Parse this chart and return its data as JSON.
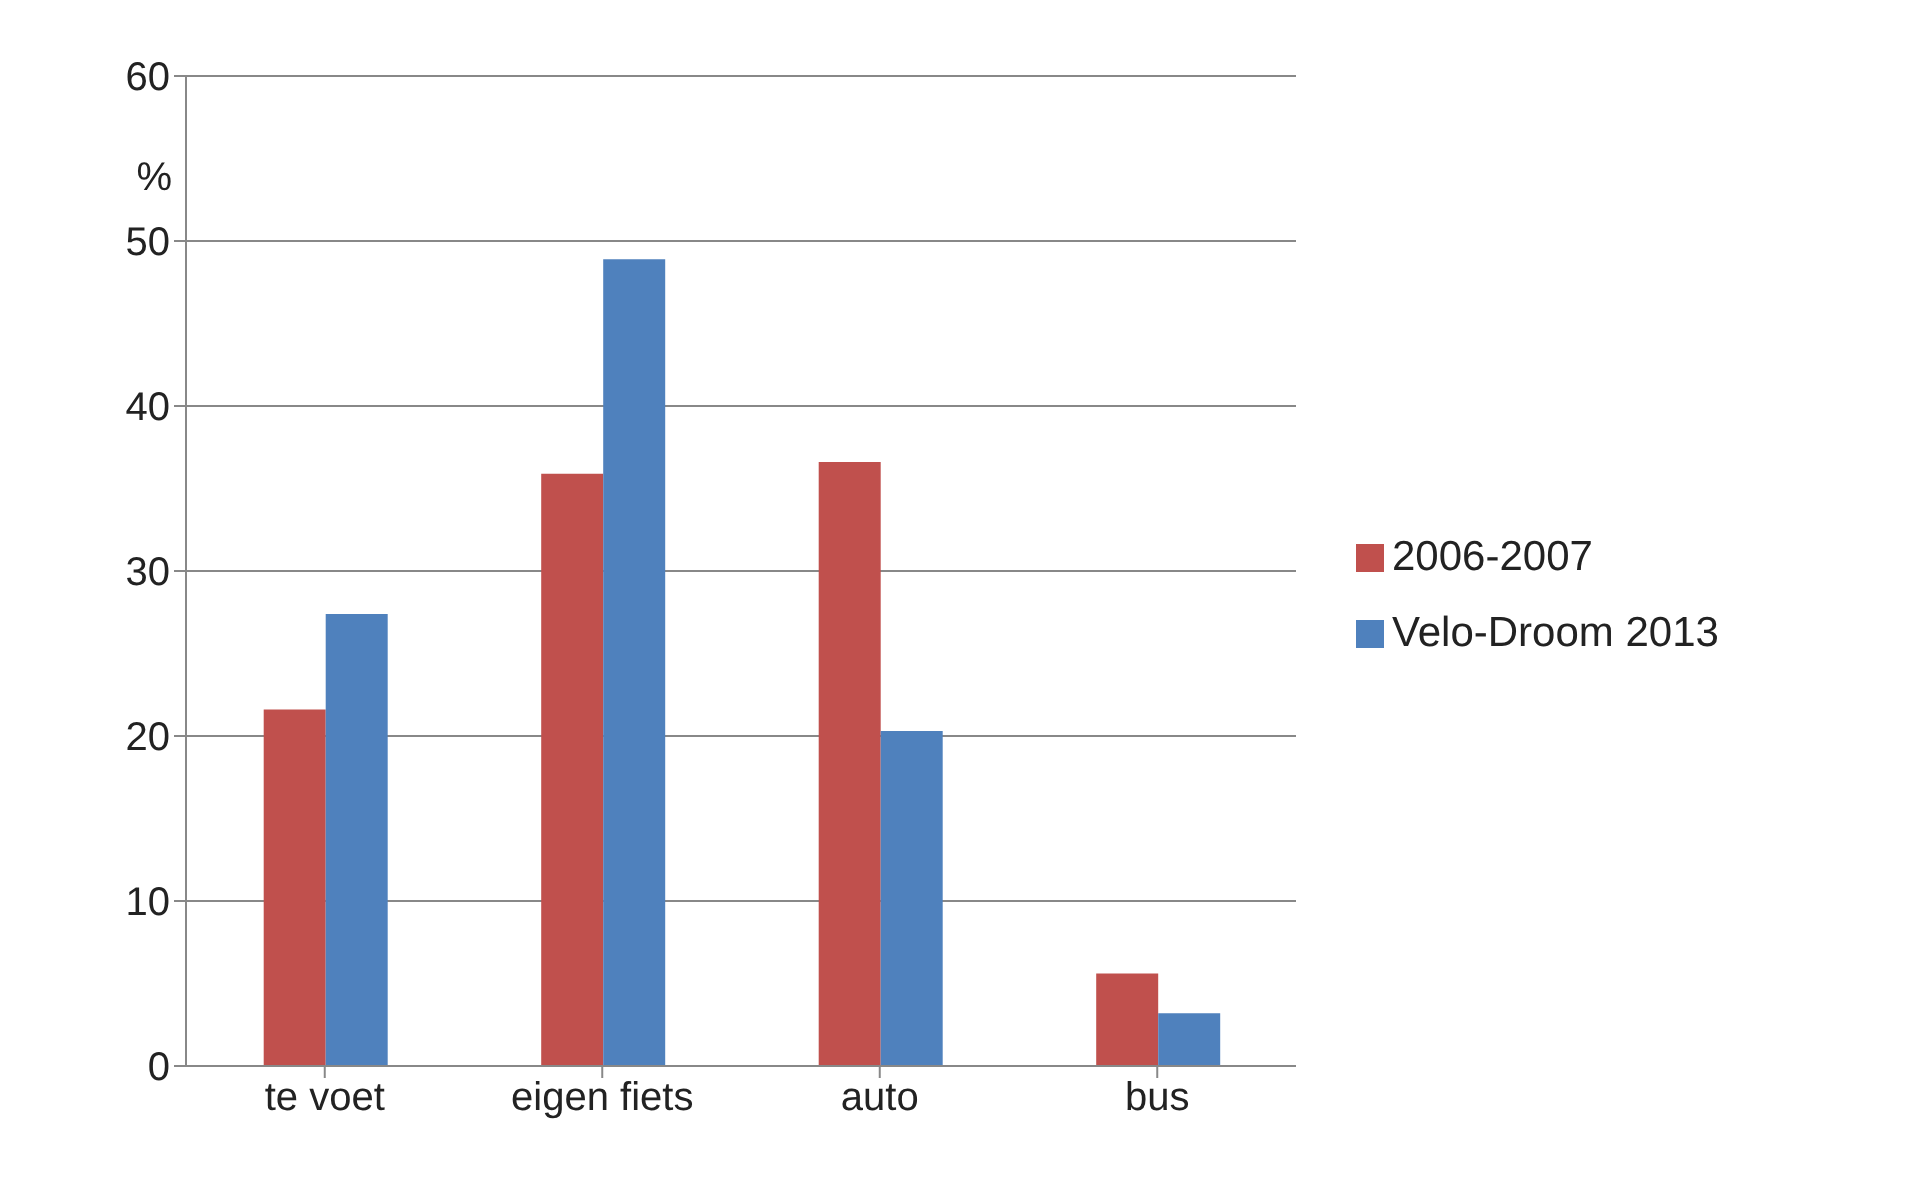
{
  "chart_data": {
    "type": "bar",
    "ylabel": "%",
    "categories": [
      "te voet",
      "eigen fiets",
      "auto",
      "bus"
    ],
    "series": [
      {
        "name": "2006-2007",
        "color": "#c0504d",
        "values": [
          21.6,
          35.9,
          36.6,
          5.6
        ]
      },
      {
        "name": "Velo-Droom 2013",
        "color": "#4f81bd",
        "values": [
          27.4,
          48.9,
          20.3,
          3.2
        ]
      }
    ],
    "ylim": [
      0,
      60
    ],
    "yticks": [
      0,
      10,
      20,
      30,
      40,
      50,
      60
    ],
    "grid": "y",
    "legend": "right"
  }
}
